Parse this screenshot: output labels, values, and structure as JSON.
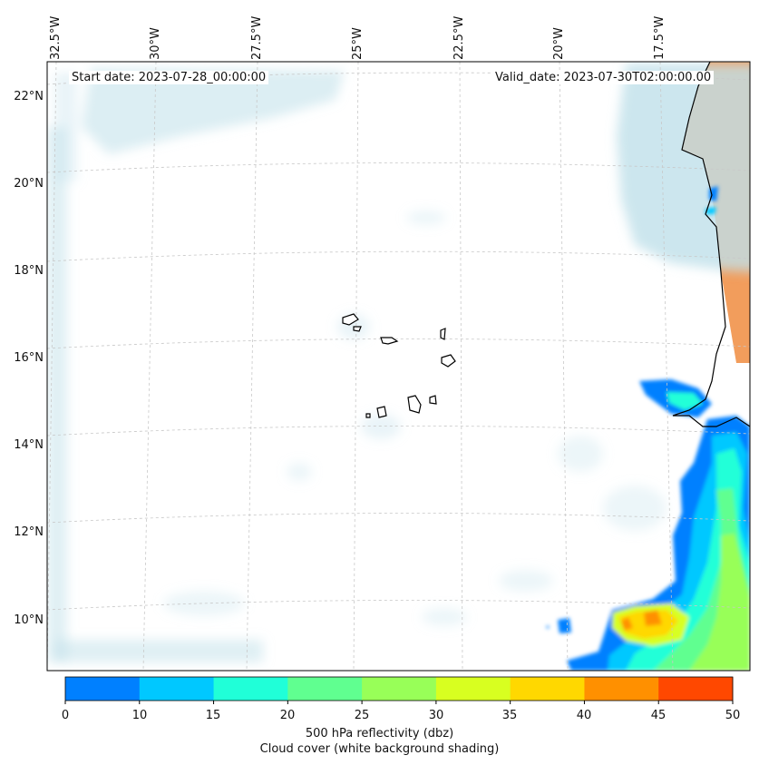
{
  "map": {
    "start_date": "Start date: 2023-07-28_00:00:00",
    "valid_date": "Valid_date: 2023-07-30T02:00:00.00",
    "lon_labels": [
      "32.5°W",
      "30°W",
      "27.5°W",
      "25°W",
      "22.5°W",
      "20°W",
      "17.5°W"
    ],
    "lat_labels": [
      "22°N",
      "20°N",
      "18°N",
      "16°N",
      "14°N",
      "12°N",
      "10°N"
    ],
    "extent": {
      "lon_min": -32.5,
      "lon_max": -15.2,
      "lat_min": 8.9,
      "lat_max": 22.8
    }
  },
  "colorbar": {
    "ticks": [
      "0",
      "10",
      "15",
      "20",
      "25",
      "30",
      "35",
      "40",
      "45",
      "50"
    ],
    "colors": [
      "#0080ff",
      "#00c8ff",
      "#20ffd8",
      "#60ff90",
      "#98ff58",
      "#d8ff20",
      "#ffd800",
      "#ff9000",
      "#ff4800"
    ],
    "title_line1": "500 hPa reflectivity (dbz)",
    "title_line2": "Cloud cover (white background shading)"
  },
  "colors": {
    "cloud": "#bfe0ea",
    "land": "#f29d5c"
  }
}
